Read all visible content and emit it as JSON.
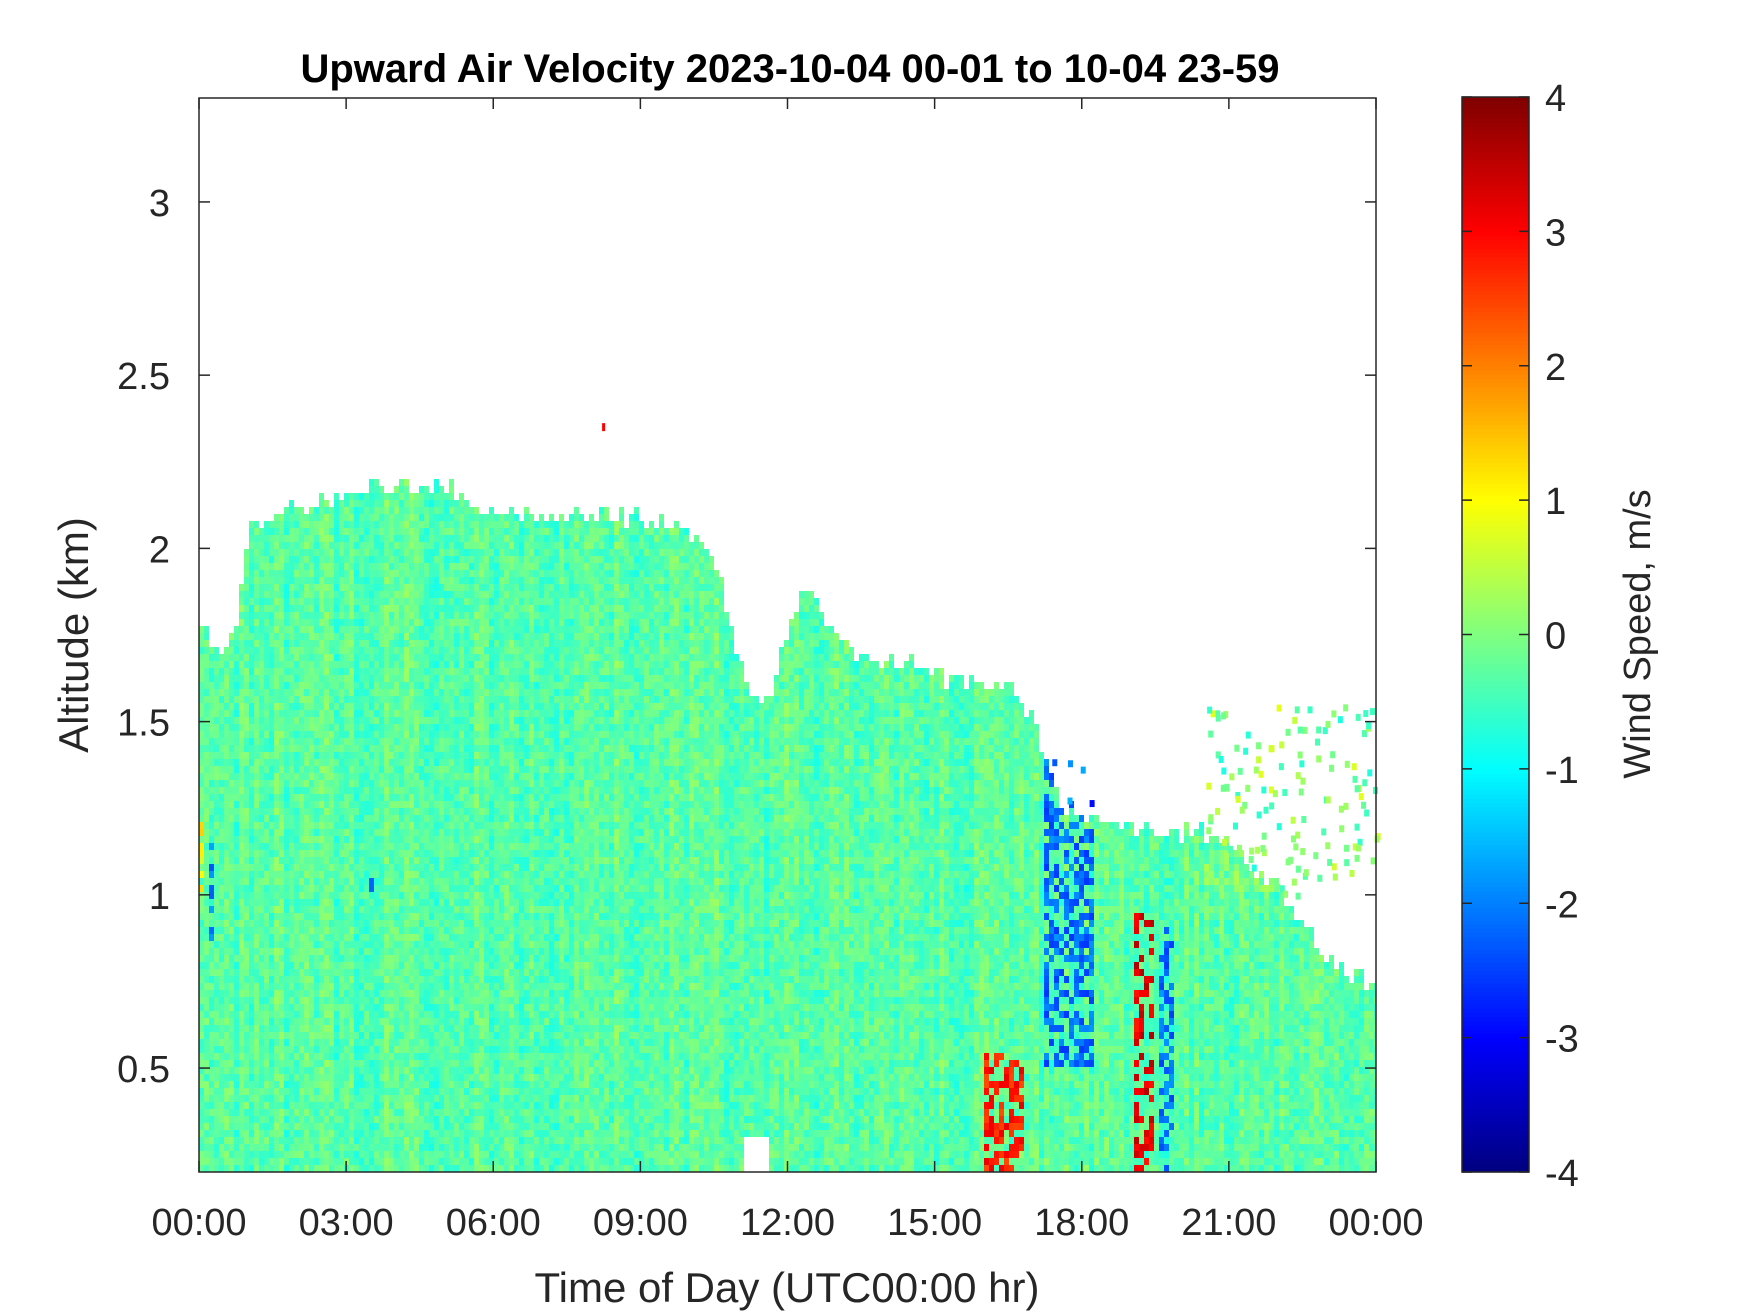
{
  "chart_data": {
    "type": "heatmap",
    "title": "Upward Air Velocity 2023-10-04 00-01 to 10-04 23-59",
    "xlabel": "Time of Day (UTC00:00 hr)",
    "ylabel": "Altitude (km)",
    "xlim": [
      0,
      24
    ],
    "ylim": [
      0.2,
      3.3
    ],
    "x_ticks": [
      {
        "value": 0,
        "label": "00:00"
      },
      {
        "value": 3,
        "label": "03:00"
      },
      {
        "value": 6,
        "label": "06:00"
      },
      {
        "value": 9,
        "label": "09:00"
      },
      {
        "value": 12,
        "label": "12:00"
      },
      {
        "value": 15,
        "label": "15:00"
      },
      {
        "value": 18,
        "label": "18:00"
      },
      {
        "value": 21,
        "label": "21:00"
      },
      {
        "value": 24,
        "label": "00:00"
      }
    ],
    "y_ticks": [
      {
        "value": 0.5,
        "label": "0.5"
      },
      {
        "value": 1,
        "label": "1"
      },
      {
        "value": 1.5,
        "label": "1.5"
      },
      {
        "value": 2,
        "label": "2"
      },
      {
        "value": 2.5,
        "label": "2.5"
      },
      {
        "value": 3,
        "label": "3"
      }
    ],
    "colorbar": {
      "label": "Wind Speed, m/s",
      "range": [
        -4,
        4
      ],
      "ticks": [
        {
          "value": 4,
          "label": "4"
        },
        {
          "value": 3,
          "label": "3"
        },
        {
          "value": 2,
          "label": "2"
        },
        {
          "value": 1,
          "label": "1"
        },
        {
          "value": 0,
          "label": "0"
        },
        {
          "value": -1,
          "label": "-1"
        },
        {
          "value": -2,
          "label": "-2"
        },
        {
          "value": -3,
          "label": "-3"
        },
        {
          "value": -4,
          "label": "-4"
        }
      ],
      "colormap": "jet"
    },
    "grid": false,
    "field": {
      "background_velocity_m_s": -0.3,
      "echo_top_km": [
        [
          0.0,
          1.78
        ],
        [
          0.2,
          1.74
        ],
        [
          0.5,
          1.72
        ],
        [
          0.8,
          1.8
        ],
        [
          1.0,
          2.05
        ],
        [
          1.5,
          2.08
        ],
        [
          1.8,
          2.15
        ],
        [
          2.0,
          2.1
        ],
        [
          2.8,
          2.15
        ],
        [
          3.5,
          2.18
        ],
        [
          5.0,
          2.18
        ],
        [
          6.0,
          2.1
        ],
        [
          8.0,
          2.1
        ],
        [
          9.5,
          2.08
        ],
        [
          10.5,
          2.0
        ],
        [
          10.9,
          1.75
        ],
        [
          11.2,
          1.6
        ],
        [
          11.6,
          1.55
        ],
        [
          12.0,
          1.75
        ],
        [
          12.4,
          1.9
        ],
        [
          12.8,
          1.8
        ],
        [
          13.5,
          1.68
        ],
        [
          14.5,
          1.68
        ],
        [
          15.3,
          1.62
        ],
        [
          16.5,
          1.6
        ],
        [
          17.0,
          1.52
        ],
        [
          17.2,
          1.4
        ],
        [
          17.6,
          1.25
        ],
        [
          18.5,
          1.22
        ],
        [
          19.5,
          1.18
        ],
        [
          20.5,
          1.18
        ],
        [
          21.2,
          1.12
        ],
        [
          22.0,
          1.02
        ],
        [
          22.5,
          0.92
        ],
        [
          23.0,
          0.82
        ],
        [
          23.5,
          0.76
        ],
        [
          24.0,
          0.74
        ]
      ],
      "features": [
        {
          "description": "scattered returns above echo top",
          "x": [
            20.5,
            24.0
          ],
          "y": [
            1.0,
            1.55
          ],
          "velocity_m_s": 0.0
        },
        {
          "description": "isolated pixel",
          "x": 8.25,
          "y": 2.35,
          "velocity_m_s": 3.0
        },
        {
          "description": "cluster",
          "x": [
            16.0,
            16.8
          ],
          "y": [
            0.2,
            0.55
          ],
          "velocity_m_s": 2.8
        },
        {
          "description": "cluster",
          "x": [
            19.1,
            19.5
          ],
          "y": [
            0.2,
            0.95
          ],
          "velocity_m_s": 3.2
        },
        {
          "description": "cluster",
          "x": [
            17.2,
            18.2
          ],
          "y": [
            0.5,
            1.4
          ],
          "velocity_m_s": -2.2
        },
        {
          "description": "cluster",
          "x": [
            19.6,
            19.9
          ],
          "y": [
            0.2,
            0.9
          ],
          "velocity_m_s": -2.2
        },
        {
          "description": "cluster",
          "x": [
            0.0,
            0.15
          ],
          "y": [
            1.0,
            1.25
          ],
          "velocity_m_s": 1.0
        },
        {
          "description": "column",
          "x": 0.25,
          "y": [
            0.85,
            1.15
          ],
          "velocity_m_s": -2.0
        },
        {
          "description": "column",
          "x": 3.5,
          "y": [
            1.0,
            1.05
          ],
          "velocity_m_s": -2.0
        },
        {
          "description": "gap",
          "x": [
            11.1,
            11.6
          ],
          "y": [
            0.2,
            0.3
          ],
          "velocity_m_s": null
        }
      ]
    }
  }
}
